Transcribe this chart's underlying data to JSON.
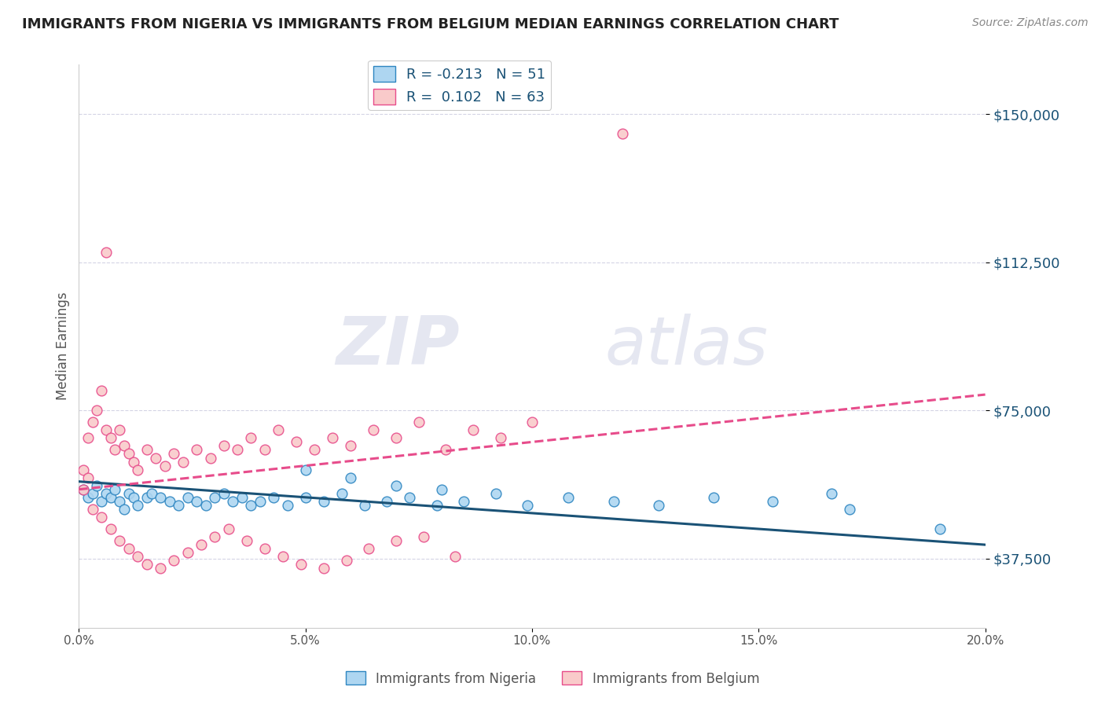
{
  "title": "IMMIGRANTS FROM NIGERIA VS IMMIGRANTS FROM BELGIUM MEDIAN EARNINGS CORRELATION CHART",
  "source": "Source: ZipAtlas.com",
  "watermark_zip": "ZIP",
  "watermark_atlas": "atlas",
  "ylabel": "Median Earnings",
  "xlim": [
    0.0,
    0.2
  ],
  "ylim": [
    20000,
    162500
  ],
  "xticks": [
    0.0,
    0.05,
    0.1,
    0.15,
    0.2
  ],
  "xtick_labels": [
    "0.0%",
    "5.0%",
    "10.0%",
    "15.0%",
    "20.0%"
  ],
  "yticks": [
    37500,
    75000,
    112500,
    150000
  ],
  "ytick_labels": [
    "$37,500",
    "$75,000",
    "$112,500",
    "$150,000"
  ],
  "nigeria_R": -0.213,
  "nigeria_N": 51,
  "nigeria_intercept": 57000,
  "nigeria_slope": -80000,
  "belgium_R": 0.102,
  "belgium_N": 63,
  "belgium_intercept": 55000,
  "belgium_slope": 120000,
  "nigeria_x": [
    0.001,
    0.002,
    0.003,
    0.004,
    0.005,
    0.006,
    0.007,
    0.008,
    0.009,
    0.01,
    0.011,
    0.012,
    0.013,
    0.015,
    0.016,
    0.018,
    0.02,
    0.022,
    0.024,
    0.026,
    0.028,
    0.03,
    0.032,
    0.034,
    0.036,
    0.038,
    0.04,
    0.043,
    0.046,
    0.05,
    0.054,
    0.058,
    0.063,
    0.068,
    0.073,
    0.079,
    0.085,
    0.092,
    0.099,
    0.108,
    0.118,
    0.128,
    0.14,
    0.153,
    0.166,
    0.05,
    0.06,
    0.07,
    0.08,
    0.17,
    0.19
  ],
  "nigeria_y": [
    55000,
    53000,
    54000,
    56000,
    52000,
    54000,
    53000,
    55000,
    52000,
    50000,
    54000,
    53000,
    51000,
    53000,
    54000,
    53000,
    52000,
    51000,
    53000,
    52000,
    51000,
    53000,
    54000,
    52000,
    53000,
    51000,
    52000,
    53000,
    51000,
    53000,
    52000,
    54000,
    51000,
    52000,
    53000,
    51000,
    52000,
    54000,
    51000,
    53000,
    52000,
    51000,
    53000,
    52000,
    54000,
    60000,
    58000,
    56000,
    55000,
    50000,
    45000
  ],
  "belgium_x": [
    0.001,
    0.002,
    0.003,
    0.004,
    0.005,
    0.006,
    0.007,
    0.008,
    0.009,
    0.01,
    0.011,
    0.012,
    0.013,
    0.015,
    0.017,
    0.019,
    0.021,
    0.023,
    0.026,
    0.029,
    0.032,
    0.035,
    0.038,
    0.041,
    0.044,
    0.048,
    0.052,
    0.056,
    0.06,
    0.065,
    0.07,
    0.075,
    0.081,
    0.087,
    0.093,
    0.1,
    0.001,
    0.003,
    0.005,
    0.007,
    0.009,
    0.011,
    0.013,
    0.015,
    0.018,
    0.021,
    0.024,
    0.027,
    0.03,
    0.033,
    0.037,
    0.041,
    0.045,
    0.049,
    0.054,
    0.059,
    0.064,
    0.07,
    0.076,
    0.083,
    0.002,
    0.006,
    0.12
  ],
  "belgium_y": [
    60000,
    68000,
    72000,
    75000,
    80000,
    70000,
    68000,
    65000,
    70000,
    66000,
    64000,
    62000,
    60000,
    65000,
    63000,
    61000,
    64000,
    62000,
    65000,
    63000,
    66000,
    65000,
    68000,
    65000,
    70000,
    67000,
    65000,
    68000,
    66000,
    70000,
    68000,
    72000,
    65000,
    70000,
    68000,
    72000,
    55000,
    50000,
    48000,
    45000,
    42000,
    40000,
    38000,
    36000,
    35000,
    37000,
    39000,
    41000,
    43000,
    45000,
    42000,
    40000,
    38000,
    36000,
    35000,
    37000,
    40000,
    42000,
    43000,
    38000,
    58000,
    115000,
    145000
  ]
}
